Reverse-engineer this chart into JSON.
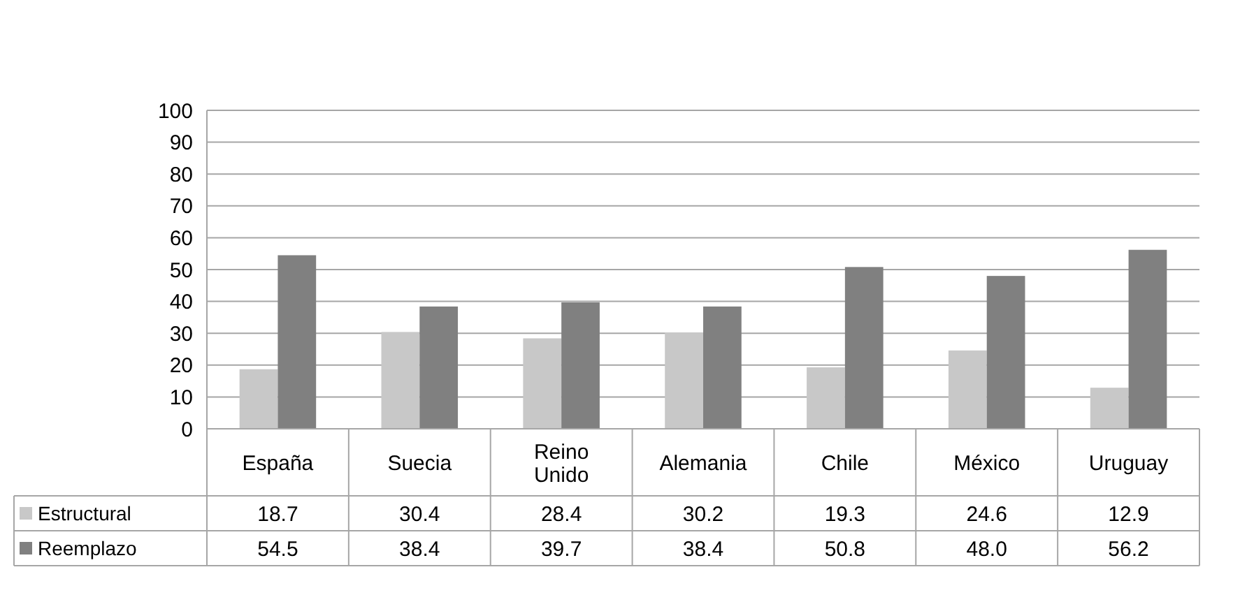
{
  "chart_data": {
    "type": "bar",
    "categories": [
      "España",
      "Suecia",
      "Reino Unido",
      "Alemania",
      "Chile",
      "México",
      "Uruguay"
    ],
    "series": [
      {
        "name": "Estructural",
        "color": "#c8c8c8",
        "values": [
          18.7,
          30.4,
          28.4,
          30.2,
          19.3,
          24.6,
          12.9
        ],
        "value_labels": [
          "18.7",
          "30.4",
          "28.4",
          "30.2",
          "19.3",
          "24.6",
          "12.9"
        ]
      },
      {
        "name": "Reemplazo",
        "color": "#808080",
        "values": [
          54.5,
          38.4,
          39.7,
          38.4,
          50.8,
          48.0,
          56.2
        ],
        "value_labels": [
          "54.5",
          "38.4",
          "39.7",
          "38.4",
          "50.8",
          "48.0",
          "56.2"
        ]
      }
    ],
    "ylim": [
      0,
      100
    ],
    "yticks": [
      0,
      10,
      20,
      30,
      40,
      50,
      60,
      70,
      80,
      90,
      100
    ],
    "grid": "y",
    "legend": "bottom"
  }
}
